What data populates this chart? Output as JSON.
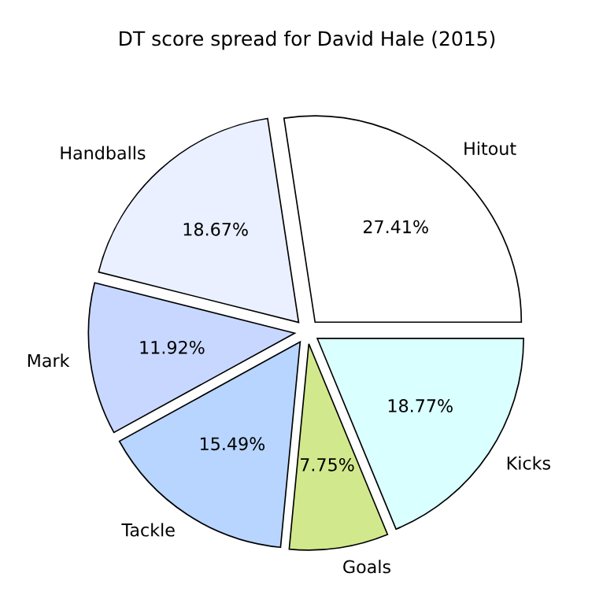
{
  "chart_data": {
    "type": "pie",
    "title": "DT score spread for David Hale (2015)",
    "categories": [
      "Hitout",
      "Handballs",
      "Mark",
      "Tackle",
      "Goals",
      "Kicks"
    ],
    "values": [
      27.41,
      18.67,
      11.92,
      15.49,
      7.75,
      18.77
    ],
    "value_labels": [
      "27.41%",
      "18.67%",
      "11.92%",
      "15.49%",
      "7.75%",
      "18.77%"
    ],
    "colors": [
      "#ffffff",
      "#eaf0ff",
      "#c8d7ff",
      "#b7d5ff",
      "#d2e88c",
      "#d9ffff"
    ]
  }
}
